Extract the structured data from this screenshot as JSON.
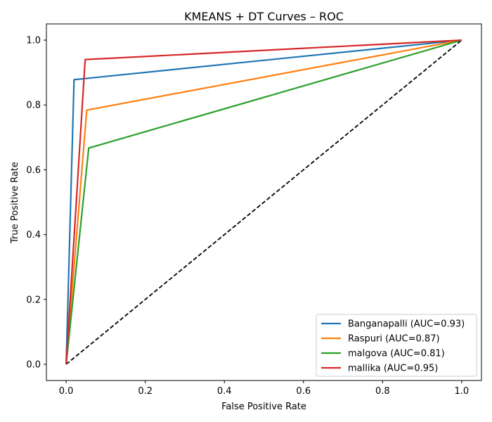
{
  "chart_data": {
    "type": "line",
    "title": "KMEANS + DT Curves – ROC",
    "xlabel": "False Positive Rate",
    "ylabel": "True Positive Rate",
    "xlim": [
      -0.05,
      1.05
    ],
    "ylim": [
      -0.05,
      1.05
    ],
    "xticks": [
      0.0,
      0.2,
      0.4,
      0.6,
      0.8,
      1.0
    ],
    "yticks": [
      0.0,
      0.2,
      0.4,
      0.6,
      0.8,
      1.0
    ],
    "xtick_labels": [
      "0.0",
      "0.2",
      "0.4",
      "0.6",
      "0.8",
      "1.0"
    ],
    "ytick_labels": [
      "0.0",
      "0.2",
      "0.4",
      "0.6",
      "0.8",
      "1.0"
    ],
    "grid": false,
    "legend_position": "bottom-right",
    "series": [
      {
        "name": "Banganapalli (AUC=0.93)",
        "color": "#1f77b4",
        "x": [
          0.0,
          0.02,
          1.0
        ],
        "y": [
          0.0,
          0.878,
          1.0
        ]
      },
      {
        "name": "Raspuri (AUC=0.87)",
        "color": "#ff7f0e",
        "x": [
          0.0,
          0.052,
          1.0
        ],
        "y": [
          0.0,
          0.784,
          1.0
        ]
      },
      {
        "name": "malgova (AUC=0.81)",
        "color": "#2ca02c",
        "x": [
          0.0,
          0.057,
          1.0
        ],
        "y": [
          0.0,
          0.667,
          1.0
        ]
      },
      {
        "name": "mallika (AUC=0.95)",
        "color": "#d62728",
        "x": [
          0.0,
          0.048,
          1.0
        ],
        "y": [
          0.0,
          0.94,
          1.0
        ]
      }
    ],
    "reference_line": {
      "color": "#000000",
      "style": "dashed",
      "x": [
        0.0,
        1.0
      ],
      "y": [
        0.0,
        1.0
      ]
    }
  }
}
